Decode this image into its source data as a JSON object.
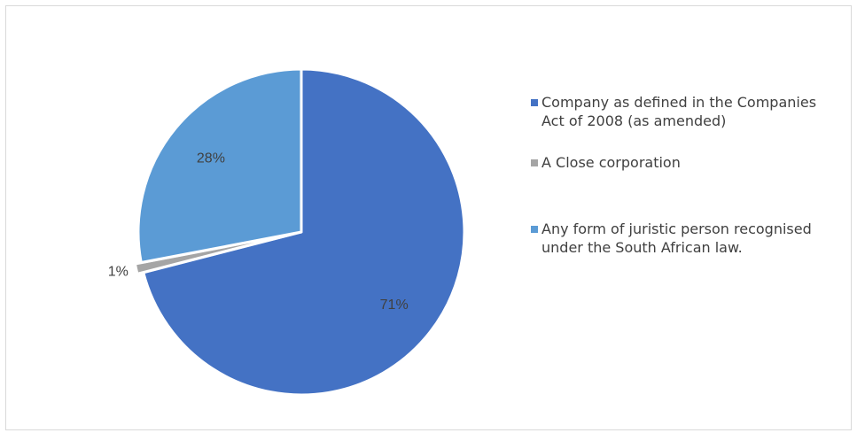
{
  "chart_data": {
    "type": "pie",
    "categories": [
      "Company as defined in the Companies Act of 2008 (as amended)",
      "A Close corporation",
      "Any form of juristic person recognised under the South African law."
    ],
    "values": [
      71,
      1,
      28
    ],
    "data_labels": [
      "71%",
      "1%",
      "28%"
    ],
    "colors": [
      "#4472C4",
      "#A5A5A5",
      "#5B9BD5"
    ],
    "title": "",
    "legend_position": "right",
    "exploded_slice": "A Close corporation"
  },
  "legend": {
    "items": [
      {
        "label": "Company as defined in the Companies Act of 2008 (as amended)",
        "color": "#4472C4"
      },
      {
        "label": "A Close corporation",
        "color": "#A5A5A5"
      },
      {
        "label": "Any form of juristic person recognised under the South African law.",
        "color": "#5B9BD5"
      }
    ]
  }
}
